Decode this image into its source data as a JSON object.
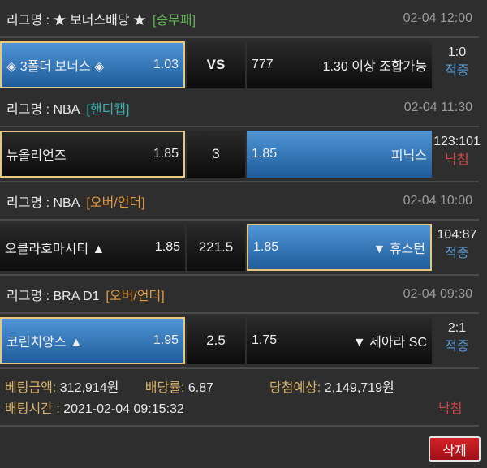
{
  "colors": {
    "selected": "#3a7cc0",
    "gold_border": "#e6c77d",
    "hit": "#5b9bd5",
    "miss": "#d9474a",
    "label": "#d9b36a"
  },
  "games": [
    {
      "league": "리그명 : ★ 보너스배당 ★",
      "type": "[승무패]",
      "type_color": "#5fb552",
      "time": "02-04 12:00",
      "home": "◈ 3폴더 보너스 ◈",
      "home_odds": "1.03",
      "mid": "VS",
      "away_odds": "777",
      "away": "1.30 이상 조합가능",
      "score": "1:0",
      "result": "적중",
      "selected": "home"
    },
    {
      "league": "리그명 : NBA",
      "type": "[핸디캡]",
      "type_color": "#39b3b0",
      "time": "02-04 11:30",
      "home": "뉴올리언즈",
      "home_odds": "1.85",
      "mid": "3",
      "away_odds": "1.85",
      "away": "피닉스",
      "score": "123:101",
      "result": "낙첨",
      "selected": "away"
    },
    {
      "league": "리그명 : NBA",
      "type": "[오버/언더]",
      "type_color": "#e39a3b",
      "time": "02-04 10:00",
      "home": "오클라호마시티 ▲",
      "home_odds": "1.85",
      "mid": "221.5",
      "away_odds": "1.85",
      "away": "▼ 휴스턴",
      "score": "104:87",
      "result": "적중",
      "selected": "away"
    },
    {
      "league": "리그명 : BRA D1",
      "type": "[오버/언더]",
      "type_color": "#e39a3b",
      "time": "02-04 09:30",
      "home": "코린치앙스 ▲",
      "home_odds": "1.95",
      "mid": "2.5",
      "away_odds": "1.75",
      "away": "▼ 세아라 SC",
      "score": "2:1",
      "result": "적중",
      "selected": "home"
    }
  ],
  "summary": {
    "bet_label": "베팅금액:",
    "bet_value": "312,914원",
    "odds_label": "배당률:",
    "odds_value": "6.87",
    "win_label": "당첨예상:",
    "win_value": "2,149,719원",
    "time_label": "배팅시간 :",
    "time_value": "2021-02-04 09:15:32",
    "result": "낙첨"
  },
  "delete_label": "삭제"
}
